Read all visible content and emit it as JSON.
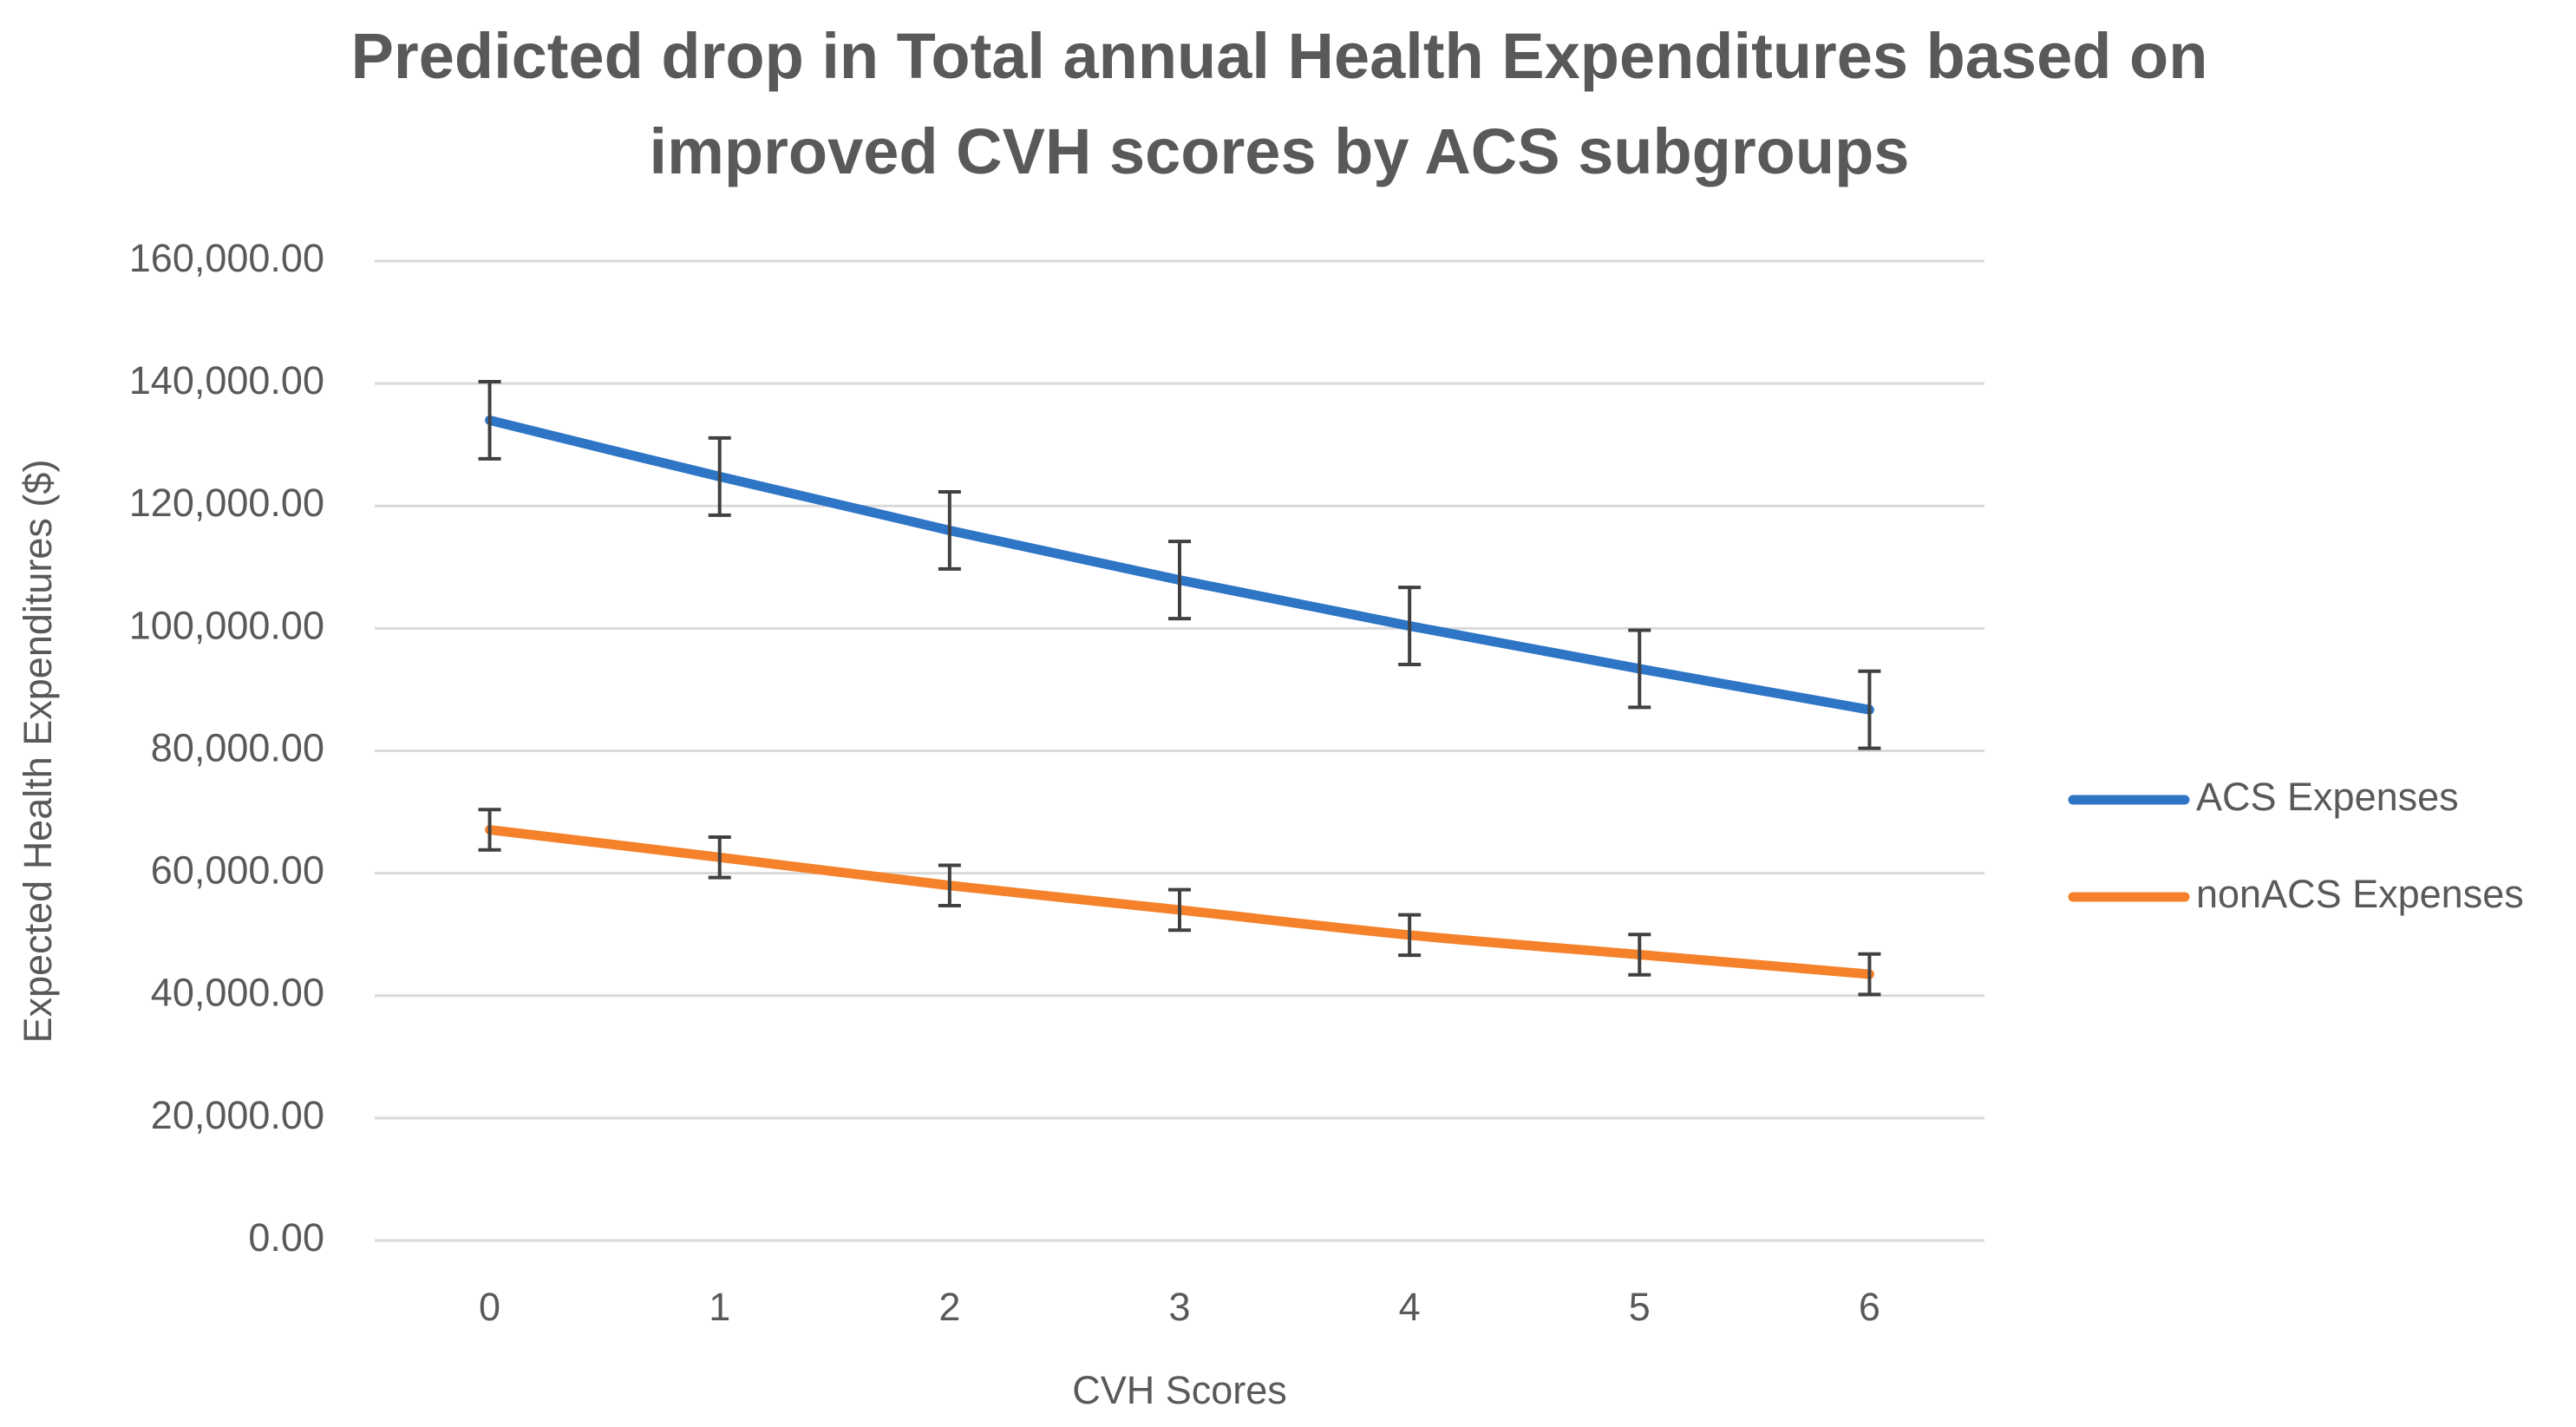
{
  "chart_data": {
    "type": "line",
    "title": "Predicted drop in Total annual Health Expenditures based on improved CVH scores by ACS subgroups",
    "xlabel": "CVH Scores",
    "ylabel": "Expected Health Expenditures ($)",
    "categories": [
      "0",
      "1",
      "2",
      "3",
      "4",
      "5",
      "6"
    ],
    "series": [
      {
        "name": "ACS Expenses",
        "color": "#2E75C6",
        "values": [
          134000,
          124800,
          116000,
          107900,
          100400,
          93400,
          86700
        ],
        "errors": [
          6300,
          6300,
          6300,
          6300,
          6300,
          6300,
          6300
        ]
      },
      {
        "name": "nonACS Expenses",
        "color": "#F5812A",
        "values": [
          67100,
          62600,
          58000,
          54000,
          49900,
          46700,
          43500
        ],
        "errors": [
          3300,
          3300,
          3300,
          3300,
          3300,
          3300,
          3300
        ]
      }
    ],
    "ylim": [
      0,
      160000
    ],
    "yticks": [
      {
        "value": 0,
        "label": "0.00"
      },
      {
        "value": 20000,
        "label": "20,000.00"
      },
      {
        "value": 40000,
        "label": "40,000.00"
      },
      {
        "value": 60000,
        "label": "60,000.00"
      },
      {
        "value": 80000,
        "label": "80,000.00"
      },
      {
        "value": 100000,
        "label": "100,000.00"
      },
      {
        "value": 120000,
        "label": "120,000.00"
      },
      {
        "value": 140000,
        "label": "140,000.00"
      },
      {
        "value": 160000,
        "label": "160,000.00"
      }
    ],
    "grid": true,
    "legend": "right"
  }
}
